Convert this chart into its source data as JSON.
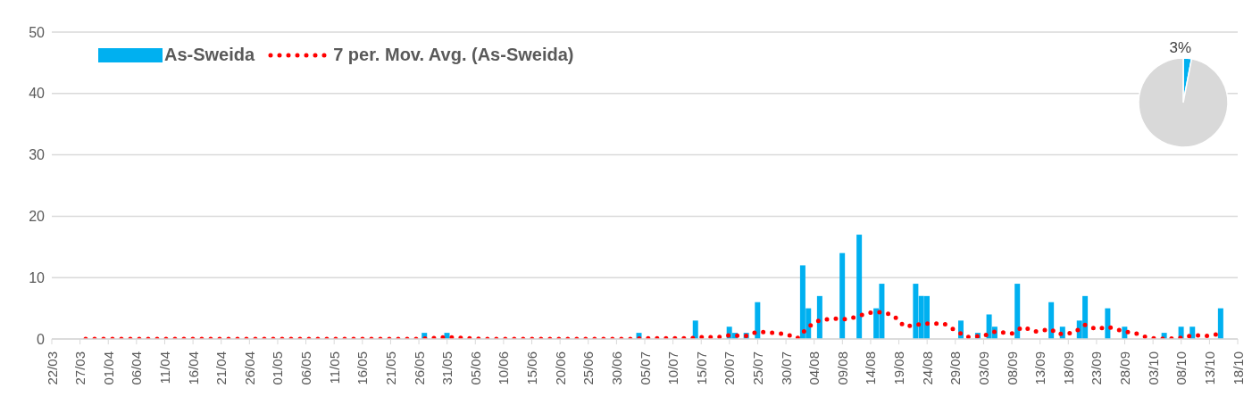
{
  "chart_data": [
    {
      "type": "bar",
      "xlim": [
        "--03-22",
        "--10-18"
      ],
      "xticks": [
        {
          "value": "--03-22",
          "label": "22/03"
        },
        {
          "value": "--03-27",
          "label": "27/03"
        },
        {
          "value": "--04-01",
          "label": "01/04"
        },
        {
          "value": "--04-06",
          "label": "06/04"
        },
        {
          "value": "--04-11",
          "label": "11/04"
        },
        {
          "value": "--04-16",
          "label": "16/04"
        },
        {
          "value": "--04-21",
          "label": "21/04"
        },
        {
          "value": "--04-26",
          "label": "26/04"
        },
        {
          "value": "--05-01",
          "label": "01/05"
        },
        {
          "value": "--05-06",
          "label": "06/05"
        },
        {
          "value": "--05-11",
          "label": "11/05"
        },
        {
          "value": "--05-16",
          "label": "16/05"
        },
        {
          "value": "--05-21",
          "label": "21/05"
        },
        {
          "value": "--05-26",
          "label": "26/05"
        },
        {
          "value": "--05-31",
          "label": "31/05"
        },
        {
          "value": "--06-05",
          "label": "05/06"
        },
        {
          "value": "--06-10",
          "label": "10/06"
        },
        {
          "value": "--06-15",
          "label": "15/06"
        },
        {
          "value": "--06-20",
          "label": "20/06"
        },
        {
          "value": "--06-25",
          "label": "25/06"
        },
        {
          "value": "--06-30",
          "label": "30/06"
        },
        {
          "value": "--07-05",
          "label": "05/07"
        },
        {
          "value": "--07-10",
          "label": "10/07"
        },
        {
          "value": "--07-15",
          "label": "15/07"
        },
        {
          "value": "--07-20",
          "label": "20/07"
        },
        {
          "value": "--07-25",
          "label": "25/07"
        },
        {
          "value": "--07-30",
          "label": "30/07"
        },
        {
          "value": "--08-04",
          "label": "04/08"
        },
        {
          "value": "--08-09",
          "label": "09/08"
        },
        {
          "value": "--08-14",
          "label": "14/08"
        },
        {
          "value": "--08-19",
          "label": "19/08"
        },
        {
          "value": "--08-24",
          "label": "24/08"
        },
        {
          "value": "--08-29",
          "label": "29/08"
        },
        {
          "value": "--09-03",
          "label": "03/09"
        },
        {
          "value": "--09-08",
          "label": "08/09"
        },
        {
          "value": "--09-13",
          "label": "13/09"
        },
        {
          "value": "--09-18",
          "label": "18/09"
        },
        {
          "value": "--09-23",
          "label": "23/09"
        },
        {
          "value": "--09-28",
          "label": "28/09"
        },
        {
          "value": "--10-03",
          "label": "03/10"
        },
        {
          "value": "--10-08",
          "label": "08/10"
        },
        {
          "value": "--10-13",
          "label": "13/10"
        },
        {
          "value": "--10-18",
          "label": "18/10"
        }
      ],
      "ylim": [
        0,
        50
      ],
      "yticks": [
        0,
        10,
        20,
        30,
        40,
        50
      ],
      "grid": "y",
      "legend": "top left",
      "series": [
        {
          "name": "As-Sweida",
          "type": "bar",
          "color": "#00b0f0",
          "x": [
            "--05-27",
            "--05-31",
            "--07-04",
            "--07-14",
            "--07-20",
            "--07-21",
            "--07-23",
            "--07-25",
            "--08-02",
            "--08-03",
            "--08-05",
            "--08-09",
            "--08-12",
            "--08-15",
            "--08-16",
            "--08-22",
            "--08-23",
            "--08-24",
            "--08-30",
            "--09-02",
            "--09-04",
            "--09-05",
            "--09-09",
            "--09-15",
            "--09-17",
            "--09-20",
            "--09-21",
            "--09-25",
            "--09-28",
            "--10-05",
            "--10-08",
            "--10-10",
            "--10-15"
          ],
          "values": [
            1,
            1,
            1,
            3,
            2,
            1,
            1,
            6,
            12,
            5,
            7,
            14,
            17,
            5,
            9,
            9,
            7,
            7,
            3,
            1,
            4,
            2,
            9,
            6,
            2,
            3,
            7,
            5,
            2,
            1,
            2,
            2,
            5
          ]
        },
        {
          "name": "7 per. Mov. Avg. (As-Sweida)",
          "type": "line",
          "color": "#ff0000",
          "line_style": "dotted",
          "x": [
            "--03-28",
            "--05-25",
            "--05-28",
            "--05-31",
            "--06-04",
            "--06-07",
            "--07-02",
            "--07-05",
            "--07-10",
            "--07-13",
            "--07-15",
            "--07-18",
            "--07-20",
            "--07-23",
            "--07-25",
            "--07-28",
            "--07-30",
            "--08-01",
            "--08-03",
            "--08-05",
            "--08-08",
            "--08-10",
            "--08-12",
            "--08-14",
            "--08-16",
            "--08-18",
            "--08-20",
            "--08-22",
            "--08-24",
            "--08-27",
            "--08-29",
            "--08-31",
            "--09-03",
            "--09-05",
            "--09-08",
            "--09-10",
            "--09-12",
            "--09-15",
            "--09-16",
            "--09-19",
            "--09-21",
            "--09-23",
            "--09-25",
            "--09-28",
            "--09-30",
            "--10-02",
            "--10-05",
            "--10-08",
            "--10-10",
            "--10-13",
            "--10-15"
          ],
          "values": [
            0,
            0,
            0.1,
            0.3,
            0.1,
            0,
            0,
            0.1,
            0.1,
            0.1,
            0.3,
            0.3,
            0.6,
            0.5,
            1.2,
            1.0,
            0.8,
            0.1,
            2.0,
            3.1,
            3.3,
            3.2,
            3.8,
            4.3,
            4.4,
            3.9,
            2.0,
            2.3,
            2.5,
            2.5,
            1.4,
            0.3,
            0.5,
            1.2,
            0.9,
            2.0,
            1.2,
            1.6,
            0.8,
            1.0,
            2.3,
            1.6,
            2.0,
            1.2,
            0.9,
            0.2,
            0,
            0.2,
            0.6,
            0.5,
            0.9
          ]
        }
      ]
    },
    {
      "type": "pie",
      "categories": [
        null,
        null
      ],
      "values": [
        3,
        97
      ],
      "colors": [
        "#00b0f0",
        "#d9d9d9"
      ],
      "value_labels": [
        "3%",
        null
      ]
    }
  ]
}
